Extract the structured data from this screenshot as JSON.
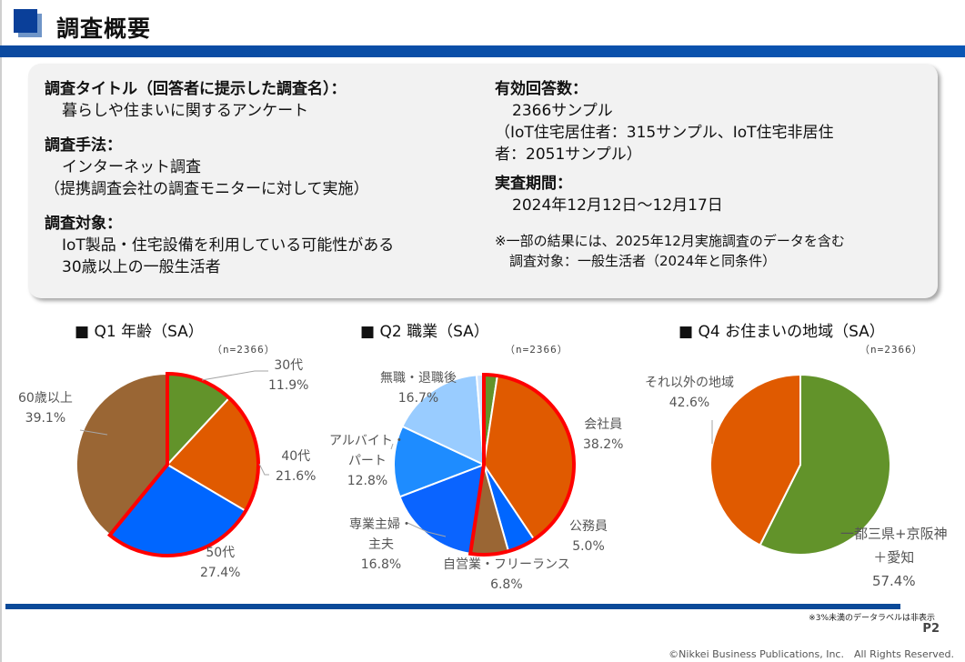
{
  "header": {
    "title": "調査概要"
  },
  "info": {
    "left": [
      {
        "heading": "調査タイトル（回答者に提示した調査名）：",
        "lines": [
          "暮らしや住まいに関するアンケート"
        ]
      },
      {
        "heading": "調査手法：",
        "lines": [
          "インターネット調査",
          "（提携調査会社の調査モニターに対して実施）"
        ]
      },
      {
        "heading": "調査対象：",
        "lines": [
          "IoT製品・住宅設備を利用している可能性がある",
          "30歳以上の一般生活者"
        ]
      }
    ],
    "right": [
      {
        "heading": "有効回答数：",
        "lines": [
          "2366サンプル",
          "（IoT住宅居住者：315サンプル、IoT住宅非居住",
          "者：2051サンプル）"
        ]
      },
      {
        "heading": "実査期間：",
        "lines": [
          "2024年12月12日～12月17日"
        ]
      }
    ],
    "note": [
      "※一部の結果には、2025年12月実施調査のデータを含む",
      "調査対象：一般生活者（2024年と同条件）"
    ]
  },
  "colors": {
    "green": "#62932a",
    "orange": "#e05a00",
    "blue": "#0066ff",
    "brown": "#9a6634",
    "midblue": "#1e8cff",
    "lightblue": "#99ccff",
    "paleblue": "#cfe4ff",
    "highlight": "#ff0000"
  },
  "chart_data": [
    {
      "type": "pie",
      "title": "■ Q1 年齢（SA）",
      "n_label": "（n=2366）",
      "slices": [
        {
          "label": "30代",
          "value": 11.9,
          "value_label": "11.9%",
          "color": "#62932a",
          "highlight": true
        },
        {
          "label": "40代",
          "value": 21.6,
          "value_label": "21.6%",
          "color": "#e05a00",
          "highlight": true
        },
        {
          "label": "50代",
          "value": 27.4,
          "value_label": "27.4%",
          "color": "#0066ff",
          "highlight": true
        },
        {
          "label": "60歳以上",
          "value": 39.1,
          "value_label": "39.1%",
          "color": "#9a6634",
          "highlight": false
        }
      ]
    },
    {
      "type": "pie",
      "title": "■ Q2 職業（SA）",
      "n_label": "（n=2366）",
      "slices": [
        {
          "label": "",
          "value": 2.4,
          "value_label": "",
          "color": "#62932a",
          "highlight": true
        },
        {
          "label": "会社員",
          "value": 38.2,
          "value_label": "38.2%",
          "color": "#e05a00",
          "highlight": true
        },
        {
          "label": "公務員",
          "value": 5.0,
          "value_label": "5.0%",
          "color": "#0066ff",
          "highlight": true
        },
        {
          "label": "自営業・フリーランス",
          "value": 6.8,
          "value_label": "6.8%",
          "color": "#9a6634",
          "highlight": true
        },
        {
          "label": "専業主婦・主夫",
          "value": 16.8,
          "value_label": "16.8%",
          "color": "#0a64ff",
          "highlight": false
        },
        {
          "label": "アルバイト・パート",
          "value": 12.8,
          "value_label": "12.8%",
          "color": "#1e8cff",
          "highlight": false
        },
        {
          "label": "無職・退職後",
          "value": 16.7,
          "value_label": "16.7%",
          "color": "#99ccff",
          "highlight": false
        },
        {
          "label": "",
          "value": 1.3,
          "value_label": "",
          "color": "#cfe4ff",
          "highlight": false
        }
      ]
    },
    {
      "type": "pie",
      "title": "■ Q4 お住まいの地域（SA）",
      "n_label": "（n=2366）",
      "slices": [
        {
          "label": "一都三県＋京阪神＋愛知",
          "value": 57.4,
          "value_label": "57.4%",
          "color": "#62932a",
          "highlight": false
        },
        {
          "label": "それ以外の地域",
          "value": 42.6,
          "value_label": "42.6%",
          "color": "#e05a00",
          "highlight": false
        }
      ]
    }
  ],
  "labels": {
    "q1": {
      "s30": "30代",
      "s40": "40代",
      "s50": "50代",
      "s60": "60歳以上",
      "v30": "11.9%",
      "v40": "21.6%",
      "v50": "27.4%",
      "v60": "39.1%"
    },
    "q2": {
      "kaisha": "会社員",
      "koumu": "公務員",
      "jiei": "自営業・フリーランス",
      "shufu1": "専業主婦・",
      "shufu2": "主夫",
      "arubai1": "アルバイト・",
      "arubai2": "パート",
      "mushoku": "無職・退職後",
      "v_kaisha": "38.2%",
      "v_koumu": "5.0%",
      "v_jiei": "6.8%",
      "v_shufu": "16.8%",
      "v_arubai": "12.8%",
      "v_mushoku": "16.7%"
    },
    "q4": {
      "other": "それ以外の地域",
      "metro1": "一都三県+京阪神",
      "metro2": "＋愛知",
      "v_other": "42.6%",
      "v_metro": "57.4%"
    }
  },
  "footer": {
    "note": "※3%未満のデータラベルは非表示",
    "page": "P2",
    "copyright": "©Nikkei Business Publications, Inc.　All Rights Reserved."
  }
}
